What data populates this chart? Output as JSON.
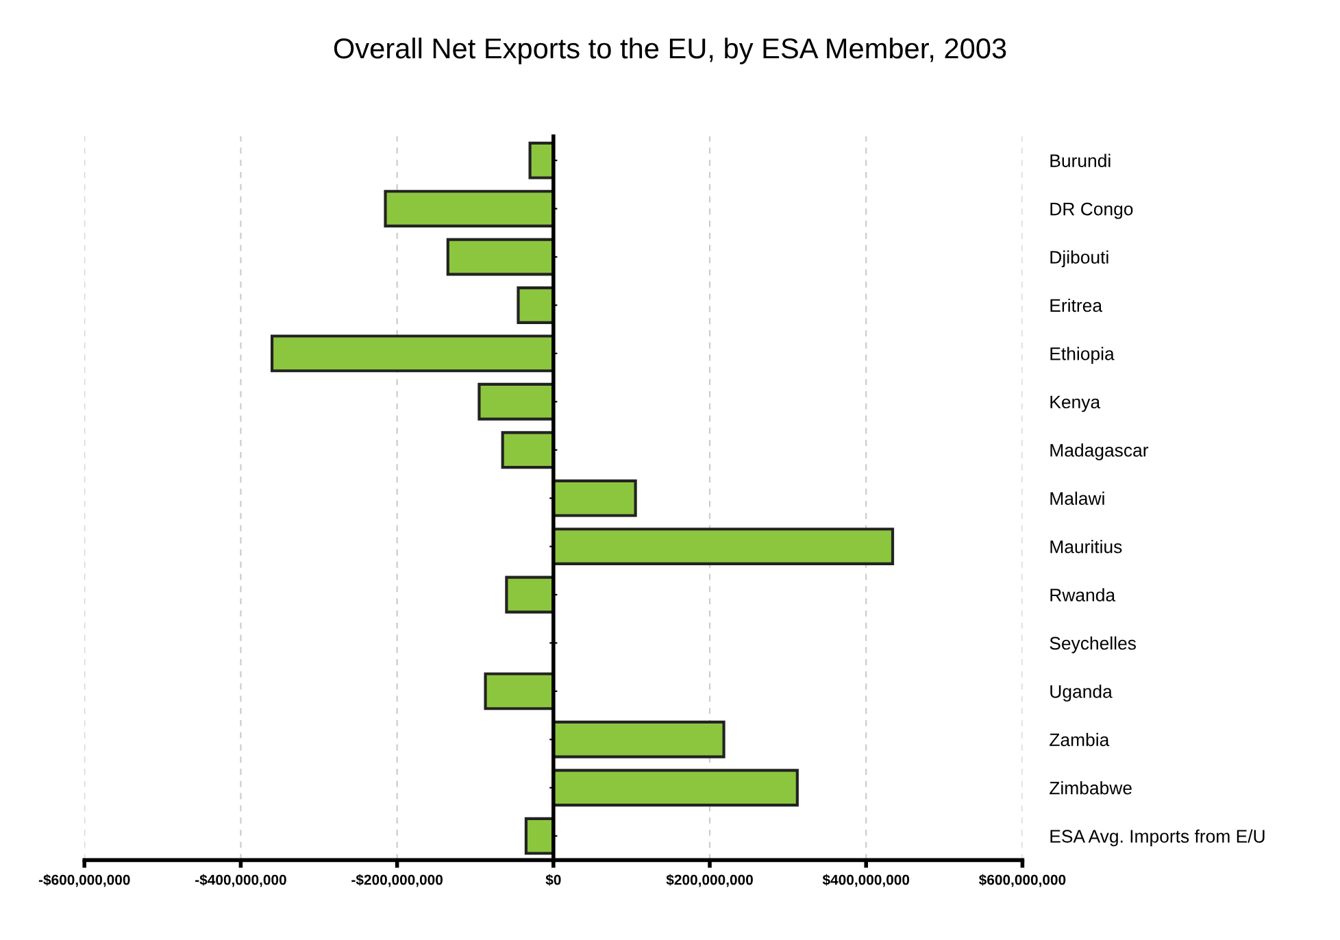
{
  "chart_data": {
    "type": "bar",
    "orientation": "horizontal",
    "title": "Overall Net Exports to the EU, by ESA Member, 2003",
    "categories": [
      "Burundi",
      "DR Congo",
      "Djibouti",
      "Eritrea",
      "Ethiopia",
      "Kenya",
      "Madagascar",
      "Malawi",
      "Mauritius",
      "Rwanda",
      "Seychelles",
      "Uganda",
      "Zambia",
      "Zimbabwe",
      "ESA Avg. Imports from E/U"
    ],
    "values": [
      -30000000,
      -215000000,
      -135000000,
      -45000000,
      -360000000,
      -95000000,
      -65000000,
      105000000,
      434000000,
      -60000000,
      null,
      -87000000,
      218000000,
      312000000,
      -35000000
    ],
    "color": "#8cc63f",
    "xlim": [
      -600000000,
      600000000
    ],
    "xticks": [
      {
        "value": -600000000,
        "label": "-$600,000,000"
      },
      {
        "value": -400000000,
        "label": "-$400,000,000"
      },
      {
        "value": -200000000,
        "label": "-$200,000,000"
      },
      {
        "value": 0,
        "label": "$0"
      },
      {
        "value": 200000000,
        "label": "$200,000,000"
      },
      {
        "value": 400000000,
        "label": "$400,000,000"
      },
      {
        "value": 600000000,
        "label": "$600,000,000"
      }
    ],
    "grid": "x"
  }
}
